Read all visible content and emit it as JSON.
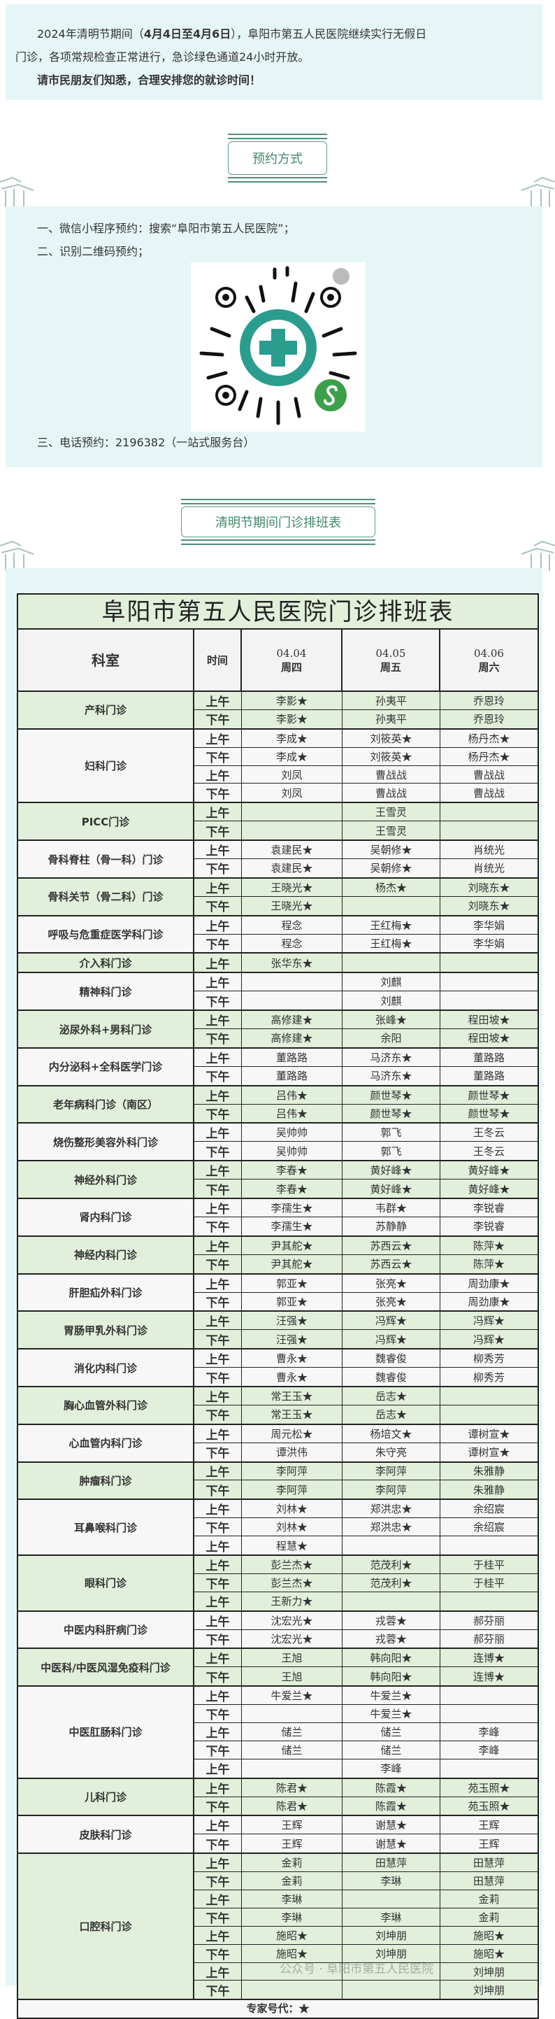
{
  "intro": {
    "line1_a": "2024年清明节期间（",
    "line1_bold": "4月4日至4月6日",
    "line1_b": "），阜阳市第五人民医院继续实行无假日",
    "line2": "门诊，各项常规检查正常进行，急诊绿色通道24小时开放。",
    "line3": "请市民朋友们知悉，合理安排您的就诊时间！"
  },
  "section1": {
    "title": "预约方式",
    "item1": "一、微信小程序预约：搜索“阜阳市第五人民医院”；",
    "item2": "二、识别二维码预约；",
    "item3": "三、电话预约：2196382（一站式服务台）"
  },
  "section2": {
    "title": "清明节期间门诊排班表"
  },
  "colors": {
    "accent": "#3f8a6a",
    "panel": "#e6f6f6",
    "row_green": "#e2efda"
  },
  "table": {
    "title": "阜阳市第五人民医院门诊排班表",
    "head_dept": "科室",
    "head_time": "时间",
    "days": [
      {
        "date": "04.04",
        "weekday": "周四"
      },
      {
        "date": "04.05",
        "weekday": "周五"
      },
      {
        "date": "04.06",
        "weekday": "周六"
      }
    ],
    "departments": [
      {
        "name": "产科门诊",
        "rows": [
          [
            "上午",
            "李影★",
            "孙夷平",
            "乔恩玲"
          ],
          [
            "下午",
            "李影★",
            "孙夷平",
            "乔恩玲"
          ]
        ]
      },
      {
        "name": "妇科门诊",
        "rows": [
          [
            "上午",
            "李成★",
            "刘筱英★",
            "杨丹杰★"
          ],
          [
            "下午",
            "李成★",
            "刘筱英★",
            "杨丹杰★"
          ],
          [
            "上午",
            "刘凤",
            "曹战战",
            "曹战战"
          ],
          [
            "下午",
            "刘凤",
            "曹战战",
            "曹战战"
          ]
        ]
      },
      {
        "name": "PICC门诊",
        "rows": [
          [
            "上午",
            "",
            "王雪灵",
            ""
          ],
          [
            "下午",
            "",
            "王雪灵",
            ""
          ]
        ]
      },
      {
        "name": "骨科脊柱（骨一科）门诊",
        "rows": [
          [
            "上午",
            "袁建民★",
            "吴朝修★",
            "肖统光"
          ],
          [
            "下午",
            "袁建民★",
            "吴朝修★",
            "肖统光"
          ]
        ]
      },
      {
        "name": "骨科关节（骨二科）门诊",
        "rows": [
          [
            "上午",
            "王晓光★",
            "杨杰★",
            "刘晓东★"
          ],
          [
            "下午",
            "王晓光★",
            "",
            "刘晓东★"
          ]
        ]
      },
      {
        "name": "呼吸与危重症医学科门诊",
        "rows": [
          [
            "上午",
            "程念",
            "王红梅★",
            "李华娟"
          ],
          [
            "下午",
            "程念",
            "王红梅★",
            "李华娟"
          ]
        ]
      },
      {
        "name": "介入科门诊",
        "rows": [
          [
            "上午",
            "张华东★",
            "",
            ""
          ]
        ]
      },
      {
        "name": "精神科门诊",
        "rows": [
          [
            "上午",
            "",
            "刘麒",
            ""
          ],
          [
            "下午",
            "",
            "刘麒",
            ""
          ]
        ]
      },
      {
        "name": "泌尿外科+男科门诊",
        "rows": [
          [
            "上午",
            "高修建★",
            "张峰★",
            "程田坡★"
          ],
          [
            "下午",
            "高修建★",
            "余阳",
            "程田坡★"
          ]
        ]
      },
      {
        "name": "内分泌科+全科医学门诊",
        "rows": [
          [
            "上午",
            "董路路",
            "马济东★",
            "董路路"
          ],
          [
            "下午",
            "董路路",
            "马济东★",
            "董路路"
          ]
        ]
      },
      {
        "name": "老年病科门诊（南区）",
        "rows": [
          [
            "上午",
            "吕伟★",
            "颜世琴★",
            "颜世琴★"
          ],
          [
            "下午",
            "吕伟★",
            "颜世琴★",
            "颜世琴★"
          ]
        ]
      },
      {
        "name": "烧伤整形美容外科门诊",
        "rows": [
          [
            "上午",
            "吴帅帅",
            "郭飞",
            "王冬云"
          ],
          [
            "下午",
            "吴帅帅",
            "郭飞",
            "王冬云"
          ]
        ]
      },
      {
        "name": "神经外科门诊",
        "rows": [
          [
            "上午",
            "李春★",
            "黄好峰★",
            "黄好峰★"
          ],
          [
            "下午",
            "李春★",
            "黄好峰★",
            "黄好峰★"
          ]
        ]
      },
      {
        "name": "肾内科门诊",
        "rows": [
          [
            "上午",
            "李孺生★",
            "韦群★",
            "李锐睿"
          ],
          [
            "下午",
            "李孺生★",
            "苏静静",
            "李锐睿"
          ]
        ]
      },
      {
        "name": "神经内科门诊",
        "rows": [
          [
            "上午",
            "尹其舵★",
            "苏西云★",
            "陈萍★"
          ],
          [
            "下午",
            "尹其舵★",
            "苏西云★",
            "陈萍★"
          ]
        ]
      },
      {
        "name": "肝胆疝外科门诊",
        "rows": [
          [
            "上午",
            "郭亚★",
            "张亮★",
            "周劲康★"
          ],
          [
            "下午",
            "郭亚★",
            "张亮★",
            "周劲康★"
          ]
        ]
      },
      {
        "name": "胃肠甲乳外科门诊",
        "rows": [
          [
            "上午",
            "汪强★",
            "冯辉★",
            "冯辉★"
          ],
          [
            "下午",
            "汪强★",
            "冯辉★",
            "冯辉★"
          ]
        ]
      },
      {
        "name": "消化内科门诊",
        "rows": [
          [
            "上午",
            "曹永★",
            "魏睿俊",
            "柳秀芳"
          ],
          [
            "下午",
            "曹永★",
            "魏睿俊",
            "柳秀芳"
          ]
        ]
      },
      {
        "name": "胸心血管外科门诊",
        "rows": [
          [
            "上午",
            "常王玉★",
            "岳志★",
            ""
          ],
          [
            "下午",
            "常王玉★",
            "岳志★",
            ""
          ]
        ]
      },
      {
        "name": "心血管内科门诊",
        "rows": [
          [
            "上午",
            "周元松★",
            "杨培文★",
            "谭树宣★"
          ],
          [
            "下午",
            "谭洪伟",
            "朱守亮",
            "谭树宣★"
          ]
        ]
      },
      {
        "name": "肿瘤科门诊",
        "rows": [
          [
            "上午",
            "李阿萍",
            "李阿萍",
            "朱雅静"
          ],
          [
            "下午",
            "李阿萍",
            "李阿萍",
            "朱雅静"
          ]
        ]
      },
      {
        "name": "耳鼻喉科门诊",
        "rows": [
          [
            "上午",
            "刘林★",
            "郑洪忠★",
            "余绍宸"
          ],
          [
            "下午",
            "刘林★",
            "郑洪忠★",
            "余绍宸"
          ],
          [
            "上午",
            "程慧★",
            "",
            ""
          ]
        ]
      },
      {
        "name": "眼科门诊",
        "rows": [
          [
            "上午",
            "彭兰杰★",
            "范茂利★",
            "于桂平"
          ],
          [
            "下午",
            "彭兰杰★",
            "范茂利★",
            "于桂平"
          ],
          [
            "上午",
            "王新力★",
            "",
            ""
          ]
        ]
      },
      {
        "name": "中医内科肝病门诊",
        "rows": [
          [
            "上午",
            "沈宏光★",
            "戎蓉★",
            "郝芬丽"
          ],
          [
            "下午",
            "沈宏光★",
            "戎蓉★",
            "郝芬丽"
          ]
        ]
      },
      {
        "name": "中医科/中医风湿免疫科门诊",
        "rows": [
          [
            "上午",
            "王旭",
            "韩向阳★",
            "连博★"
          ],
          [
            "下午",
            "王旭",
            "韩向阳★",
            "连博★"
          ]
        ]
      },
      {
        "name": "中医肛肠科门诊",
        "rows": [
          [
            "上午",
            "牛爱兰★",
            "牛爱兰★",
            ""
          ],
          [
            "下午",
            "",
            "牛爱兰★",
            ""
          ],
          [
            "上午",
            "储兰",
            "储兰",
            "李峰"
          ],
          [
            "下午",
            "储兰",
            "储兰",
            "李峰"
          ],
          [
            "上午",
            "",
            "李峰",
            ""
          ]
        ]
      },
      {
        "name": "儿科门诊",
        "rows": [
          [
            "上午",
            "陈君★",
            "陈霞★",
            "苑玉照★"
          ],
          [
            "下午",
            "陈君★",
            "陈霞★",
            "苑玉照★"
          ]
        ]
      },
      {
        "name": "皮肤科门诊",
        "rows": [
          [
            "上午",
            "王辉",
            "谢慧★",
            "王辉"
          ],
          [
            "下午",
            "王辉",
            "谢慧★",
            "王辉"
          ]
        ]
      },
      {
        "name": "口腔科门诊",
        "rows": [
          [
            "上午",
            "金莉",
            "田慧萍",
            "田慧萍"
          ],
          [
            "下午",
            "金莉",
            "李琳",
            "田慧萍"
          ],
          [
            "上午",
            "李琳",
            "",
            "金莉"
          ],
          [
            "下午",
            "李琳",
            "李琳",
            "金莉"
          ],
          [
            "上午",
            "施昭★",
            "刘坤朋",
            "施昭★"
          ],
          [
            "下午",
            "施昭★",
            "刘坤朋",
            "施昭★"
          ],
          [
            "上午",
            "",
            "",
            "刘坤朋"
          ],
          [
            "下午",
            "",
            "",
            "刘坤朋"
          ]
        ]
      }
    ],
    "footer": "专家号代：★",
    "watermark": "公众号 · 阜阳市第五人民医院"
  }
}
